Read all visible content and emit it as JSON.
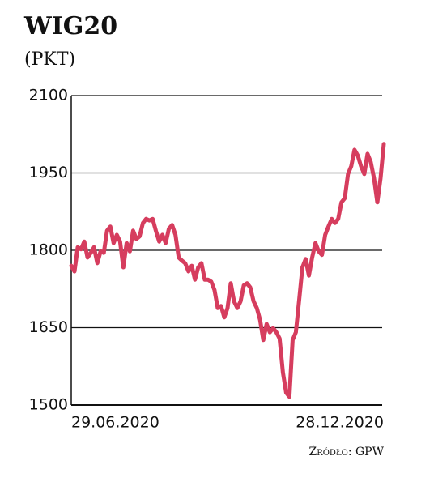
{
  "chart_data": {
    "type": "line",
    "title": "WIG20",
    "subtitle": "(PKT)",
    "source": "Źródło: GPW",
    "categories": [
      "29.06.2020",
      null,
      null,
      null,
      null,
      null,
      null,
      null,
      null,
      null,
      null,
      null,
      null,
      null,
      null,
      null,
      null,
      null,
      null,
      null,
      null,
      null,
      null,
      null,
      null,
      null,
      null,
      null,
      null,
      null,
      null,
      null,
      null,
      null,
      null,
      null,
      null,
      null,
      null,
      null,
      null,
      null,
      null,
      null,
      null,
      null,
      null,
      null,
      null,
      null,
      null,
      null,
      null,
      null,
      null,
      null,
      null,
      null,
      null,
      null,
      null,
      null,
      null,
      null,
      null,
      null,
      null,
      null,
      null,
      null,
      null,
      null,
      null,
      null,
      null,
      null,
      null,
      null,
      null,
      null,
      null,
      null,
      null,
      null,
      null,
      null,
      null,
      null,
      null,
      null,
      null,
      null,
      null,
      null,
      null,
      null,
      "28.12.2020"
    ],
    "values": [
      1770,
      1759,
      1806,
      1802,
      1817,
      1786,
      1795,
      1806,
      1775,
      1798,
      1795,
      1838,
      1846,
      1814,
      1830,
      1817,
      1767,
      1814,
      1798,
      1838,
      1822,
      1827,
      1853,
      1861,
      1858,
      1861,
      1838,
      1817,
      1830,
      1814,
      1842,
      1849,
      1830,
      1786,
      1780,
      1775,
      1759,
      1770,
      1743,
      1767,
      1775,
      1743,
      1743,
      1739,
      1723,
      1688,
      1692,
      1670,
      1688,
      1736,
      1701,
      1688,
      1701,
      1732,
      1736,
      1728,
      1701,
      1688,
      1665,
      1626,
      1657,
      1641,
      1649,
      1641,
      1629,
      1563,
      1524,
      1516,
      1626,
      1641,
      1704,
      1767,
      1783,
      1751,
      1786,
      1814,
      1798,
      1791,
      1830,
      1846,
      1861,
      1853,
      1861,
      1893,
      1901,
      1948,
      1963,
      1995,
      1984,
      1963,
      1948,
      1987,
      1971,
      1940,
      1893,
      1940,
      2006
    ],
    "color": "#d63d5e",
    "ylim": [
      1500,
      2100
    ],
    "yticks": [
      1500,
      1650,
      1800,
      1950,
      2100
    ],
    "grid": true
  }
}
